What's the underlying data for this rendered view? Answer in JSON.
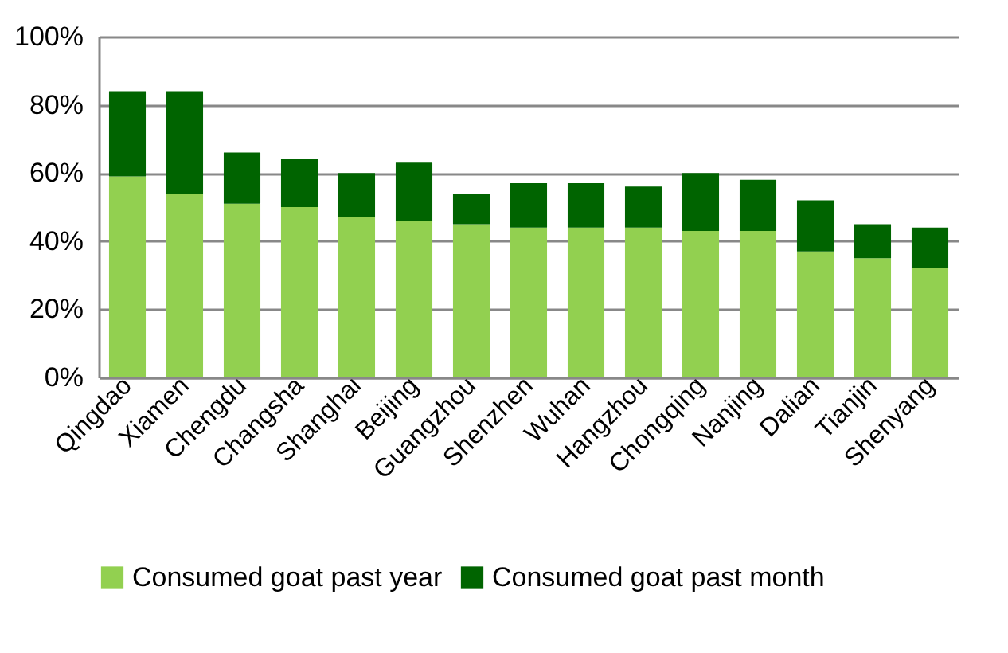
{
  "chart_data": {
    "type": "bar",
    "stacked": true,
    "categories": [
      "Qingdao",
      "Xiamen",
      "Chengdu",
      "Changsha",
      "Shanghai",
      "Beijing",
      "Guangzhou",
      "Shenzhen",
      "Wuhan",
      "Hangzhou",
      "Chongqing",
      "Nanjing",
      "Dalian",
      "Tianjin",
      "Shenyang"
    ],
    "series": [
      {
        "name": "Consumed goat past year",
        "color": "#92d050",
        "values": [
          59,
          54,
          51,
          50,
          47,
          46,
          45,
          44,
          44,
          44,
          43,
          43,
          37,
          35,
          32
        ]
      },
      {
        "name": "Consumed goat past month",
        "color": "#006400",
        "values": [
          25,
          30,
          15,
          14,
          13,
          17,
          9,
          13,
          13,
          12,
          17,
          15,
          15,
          10,
          12
        ]
      }
    ],
    "ylim": [
      0,
      100
    ],
    "yticks": [
      {
        "value": 0,
        "label": "0%"
      },
      {
        "value": 20,
        "label": "20%"
      },
      {
        "value": 40,
        "label": "40%"
      },
      {
        "value": 60,
        "label": "60%"
      },
      {
        "value": 80,
        "label": "80%"
      },
      {
        "value": 100,
        "label": "100%"
      }
    ],
    "grid": "y",
    "legend": "bottom"
  }
}
